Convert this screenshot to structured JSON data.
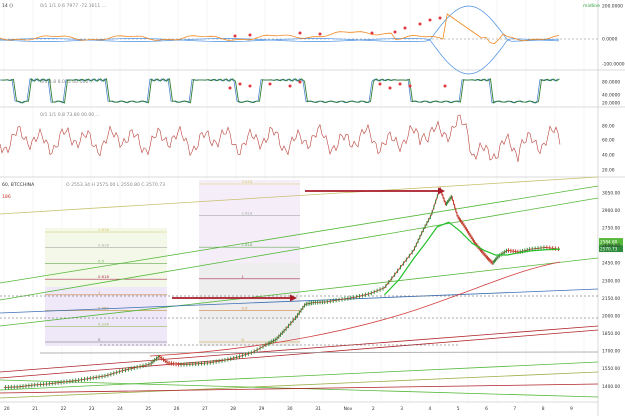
{
  "header": {
    "symbol_label": "60, BTCCHINA",
    "ohlc_text": "O 2553.34 H 2575.00 L 2550.80 C 2570.73",
    "indicator1_label": "14 ()",
    "indicator1_values": "0/1   1/1   0.6 7977  -72.1611 ...",
    "indicator1_side": "midline",
    "indicator2_values": "0/1   4.8 8.035   00.000 ...",
    "indicator3_values": "0/1   1/1   0.8 73.80 00.00 ...",
    "price_marker": "186"
  },
  "colors": {
    "background": "#ffffff",
    "candle_up": "#2e8b3a",
    "candle_down": "#c0392b",
    "sma": "#22c02a",
    "trend_green": "#55b83a",
    "trend_red": "#b0242a",
    "trend_blue": "#3d6fb4",
    "trend_olive": "#c8c070",
    "cci_orange": "#f08a24",
    "cci_blue": "#4a90e2",
    "stoch_green": "#2e7d32",
    "stoch_blue": "#3d78c8",
    "rsi": "#b8433a",
    "signal_dot": "#e0383e",
    "arrow": "#a81c2a"
  },
  "chart_data": {
    "type": "line",
    "title": "60, BTCCHINA",
    "ohlc_last": {
      "open": 2553.34,
      "high": 2575.0,
      "low": 2550.8,
      "close": 2570.73
    },
    "x_tick_labels": [
      "20",
      "21",
      "22",
      "23",
      "24",
      "25",
      "26",
      "27",
      "28",
      "29",
      "30",
      "31",
      "Nov",
      "2",
      "3",
      "4",
      "5",
      "6",
      "7",
      "8",
      "9"
    ],
    "price_axis_ticks": [
      "3200.00",
      "3050.00",
      "2900.00",
      "2750.00",
      "2600.00",
      "2450.00",
      "2300.00",
      "2150.00",
      "2000.00",
      "1850.00",
      "1700.00",
      "1550.00",
      "1400.00",
      "1250.00"
    ],
    "price_range": [
      1300,
      3160
    ],
    "current_price_label": "2570.73",
    "current_price_label_2": "2584.80",
    "price_series": {
      "name": "BTCCHINA close",
      "x": [
        20.0,
        20.5,
        21.0,
        21.5,
        22.0,
        22.5,
        23.0,
        23.5,
        24.0,
        24.5,
        25.0,
        25.3,
        25.6,
        26.0,
        26.5,
        27.0,
        27.5,
        28.0,
        28.5,
        29.0,
        29.3,
        29.6,
        30.0,
        30.3,
        30.6,
        31.0,
        31.5,
        32.0,
        32.5,
        33.0,
        33.5,
        34.0,
        34.3,
        34.6,
        34.9,
        35.1,
        35.3,
        35.5,
        35.7,
        35.9,
        36.1,
        36.3,
        36.5,
        36.7,
        36.9,
        37.2,
        37.6,
        38.0,
        38.5,
        39.0
      ],
      "y": [
        1390,
        1395,
        1410,
        1420,
        1435,
        1450,
        1470,
        1490,
        1530,
        1560,
        1590,
        1655,
        1600,
        1585,
        1590,
        1600,
        1620,
        1650,
        1690,
        1760,
        1800,
        1880,
        1995,
        2100,
        2115,
        2120,
        2140,
        2160,
        2190,
        2240,
        2400,
        2560,
        2720,
        2860,
        3090,
        2950,
        3020,
        2850,
        2780,
        2700,
        2620,
        2560,
        2500,
        2450,
        2510,
        2560,
        2545,
        2570,
        2585,
        2570
      ]
    },
    "sma_series": {
      "x": [
        33.0,
        33.5,
        34.0,
        34.4,
        34.8,
        35.2,
        35.6,
        36.0,
        36.4,
        36.8,
        37.2,
        37.6,
        38.0,
        38.5,
        39.0
      ],
      "y": [
        2180,
        2310,
        2490,
        2620,
        2760,
        2800,
        2720,
        2620,
        2560,
        2520,
        2520,
        2540,
        2555,
        2565,
        2570
      ]
    },
    "fibonacci_boxes": [
      {
        "levels": [
          "1.618",
          "0.618",
          "0.5",
          "0.618",
          "1",
          "0.382",
          "0.236",
          "0"
        ]
      },
      {
        "levels": [
          "3.618",
          "2.618",
          "1.618",
          "1",
          "0.5",
          "0"
        ]
      }
    ],
    "cci": {
      "axis_ticks": [
        "200.0000",
        "0.0000",
        "-100.0000"
      ],
      "range": [
        -200,
        220
      ]
    },
    "stoch": {
      "axis_ticks": [
        "80.0000",
        "40.0000",
        "20.0000"
      ],
      "range": [
        0,
        100
      ]
    },
    "rsi": {
      "axis_ticks": [
        "80.00",
        "60.00",
        "40.00",
        "20.00"
      ],
      "range": [
        10,
        95
      ]
    }
  }
}
